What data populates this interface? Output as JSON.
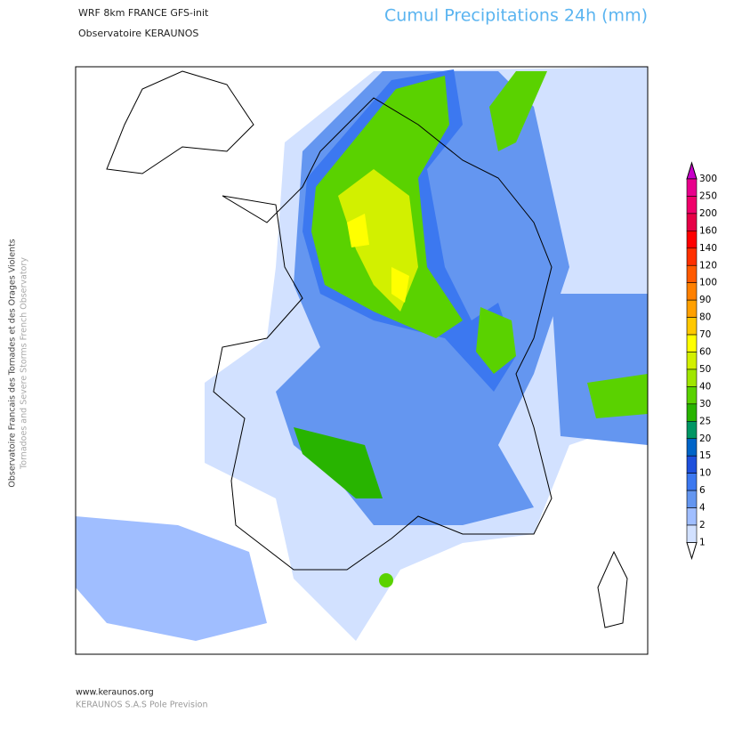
{
  "header": {
    "model": "WRF 8km FRANCE  GFS-init",
    "source": "Observatoire KERAUNOS",
    "title": "Cumul Precipitations 24h (mm)"
  },
  "side": {
    "line1": "Observatoire Francais des Tornades et des Orages Violents",
    "line2": "Tornadoes and Severe Storms French Observatory"
  },
  "footer": {
    "url": "www.keraunos.org",
    "company": "KERAUNOS S.A.S Pole Prevision"
  },
  "legend": {
    "levels": [
      300,
      250,
      200,
      160,
      140,
      120,
      100,
      90,
      80,
      70,
      60,
      50,
      40,
      30,
      25,
      20,
      15,
      10,
      6,
      4,
      2,
      1
    ],
    "colors": [
      "#e8008c",
      "#f0006a",
      "#e60046",
      "#ff0000",
      "#ff3000",
      "#ff5a00",
      "#ff8000",
      "#ffa000",
      "#ffc800",
      "#ffff00",
      "#d2f000",
      "#a0e600",
      "#5ad200",
      "#28b400",
      "#009664",
      "#0064c8",
      "#1e50dc",
      "#3c78f0",
      "#6496f0",
      "#a0beff",
      "#d2e1ff"
    ],
    "over_color": "#c800c8",
    "under_color": "#ffffff"
  }
}
